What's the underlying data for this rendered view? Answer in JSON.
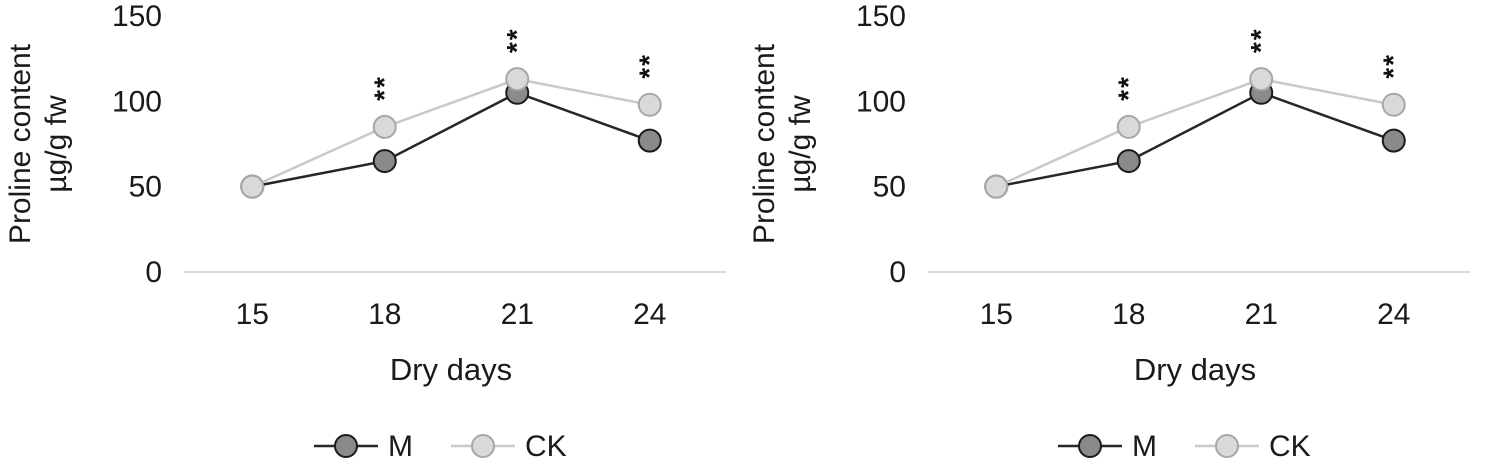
{
  "style": {
    "background": "#ffffff",
    "text_color": "#1a1a1a",
    "axis_line_color": "#d9d9d9",
    "annotation_color": "#111111"
  },
  "chart_data": [
    {
      "type": "line",
      "name": "left",
      "title": "",
      "xlabel": "Dry days",
      "ylabel": "Proline content µg/g fw",
      "ylabel_line1": "Proline content",
      "ylabel_line2": "µg/g  fw",
      "categories": [
        "15",
        "18",
        "21",
        "24"
      ],
      "ylim": [
        0,
        150
      ],
      "yticks": [
        0,
        50,
        100,
        150
      ],
      "grid": false,
      "legend_position": "bottom",
      "series": [
        {
          "name": "M",
          "values": [
            50,
            65,
            105,
            77
          ],
          "line_color": "#262626",
          "marker_fill": "#8a8a8a",
          "marker_stroke": "#1a1a1a"
        },
        {
          "name": "CK",
          "values": [
            50,
            85,
            113,
            98
          ],
          "line_color": "#c9c9c9",
          "marker_fill": "#d9d9d9",
          "marker_stroke": "#a6a6a6"
        }
      ],
      "annotations": [
        {
          "category": "18",
          "text": "**"
        },
        {
          "category": "21",
          "text": "**"
        },
        {
          "category": "24",
          "text": "**"
        }
      ]
    },
    {
      "type": "line",
      "name": "right",
      "title": "",
      "xlabel": "Dry days",
      "ylabel": "Proline content µg/g fw",
      "ylabel_line1": "Proline content",
      "ylabel_line2": "µg/g  fw",
      "categories": [
        "15",
        "18",
        "21",
        "24"
      ],
      "ylim": [
        0,
        150
      ],
      "yticks": [
        0,
        50,
        100,
        150
      ],
      "grid": false,
      "legend_position": "bottom",
      "series": [
        {
          "name": "M",
          "values": [
            50,
            65,
            105,
            77
          ],
          "line_color": "#262626",
          "marker_fill": "#8a8a8a",
          "marker_stroke": "#1a1a1a"
        },
        {
          "name": "CK",
          "values": [
            50,
            85,
            113,
            98
          ],
          "line_color": "#c9c9c9",
          "marker_fill": "#d9d9d9",
          "marker_stroke": "#a6a6a6"
        }
      ],
      "annotations": [
        {
          "category": "18",
          "text": "**"
        },
        {
          "category": "21",
          "text": "**"
        },
        {
          "category": "24",
          "text": "**"
        }
      ]
    }
  ]
}
